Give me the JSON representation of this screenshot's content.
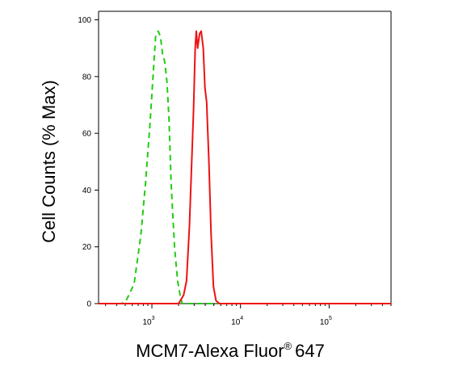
{
  "chart_data": {
    "type": "line",
    "title": "",
    "xlabel": "MCM7-Alexa Fluor",
    "xlabel_symbol": "®",
    "xlabel_suffix": "647",
    "ylabel": "Cell Counts (% Max)",
    "x_scale": "log",
    "xlim": [
      250,
      500000
    ],
    "ylim": [
      0,
      103
    ],
    "x_ticks": [
      {
        "value": 1000,
        "base": "10",
        "exp": "3"
      },
      {
        "value": 10000,
        "base": "10",
        "exp": "4"
      },
      {
        "value": 100000,
        "base": "10",
        "exp": "5"
      }
    ],
    "y_ticks": [
      0,
      20,
      40,
      60,
      80,
      100
    ],
    "series": [
      {
        "color": "#22cc11",
        "dash": "dashed",
        "points": [
          [
            250,
            0
          ],
          [
            450,
            0
          ],
          [
            500,
            0.5
          ],
          [
            550,
            3
          ],
          [
            630,
            7
          ],
          [
            750,
            24
          ],
          [
            850,
            43
          ],
          [
            950,
            63
          ],
          [
            1030,
            80
          ],
          [
            1100,
            94
          ],
          [
            1180,
            96
          ],
          [
            1250,
            94
          ],
          [
            1320,
            88
          ],
          [
            1400,
            85
          ],
          [
            1480,
            78
          ],
          [
            1560,
            65
          ],
          [
            1650,
            42
          ],
          [
            1800,
            20
          ],
          [
            1950,
            8
          ],
          [
            2080,
            3
          ],
          [
            2200,
            0
          ],
          [
            500000,
            0
          ]
        ]
      },
      {
        "color": "#ee1111",
        "dash": "solid",
        "points": [
          [
            250,
            0
          ],
          [
            2000,
            0
          ],
          [
            2280,
            3
          ],
          [
            2460,
            8
          ],
          [
            2650,
            27
          ],
          [
            2800,
            48
          ],
          [
            2950,
            68
          ],
          [
            3080,
            90
          ],
          [
            3170,
            96
          ],
          [
            3280,
            90
          ],
          [
            3450,
            95
          ],
          [
            3600,
            96
          ],
          [
            3800,
            90
          ],
          [
            3970,
            76
          ],
          [
            4150,
            71
          ],
          [
            4400,
            50
          ],
          [
            4650,
            25
          ],
          [
            4950,
            6
          ],
          [
            5300,
            1
          ],
          [
            5800,
            0
          ],
          [
            500000,
            0
          ]
        ]
      }
    ]
  }
}
